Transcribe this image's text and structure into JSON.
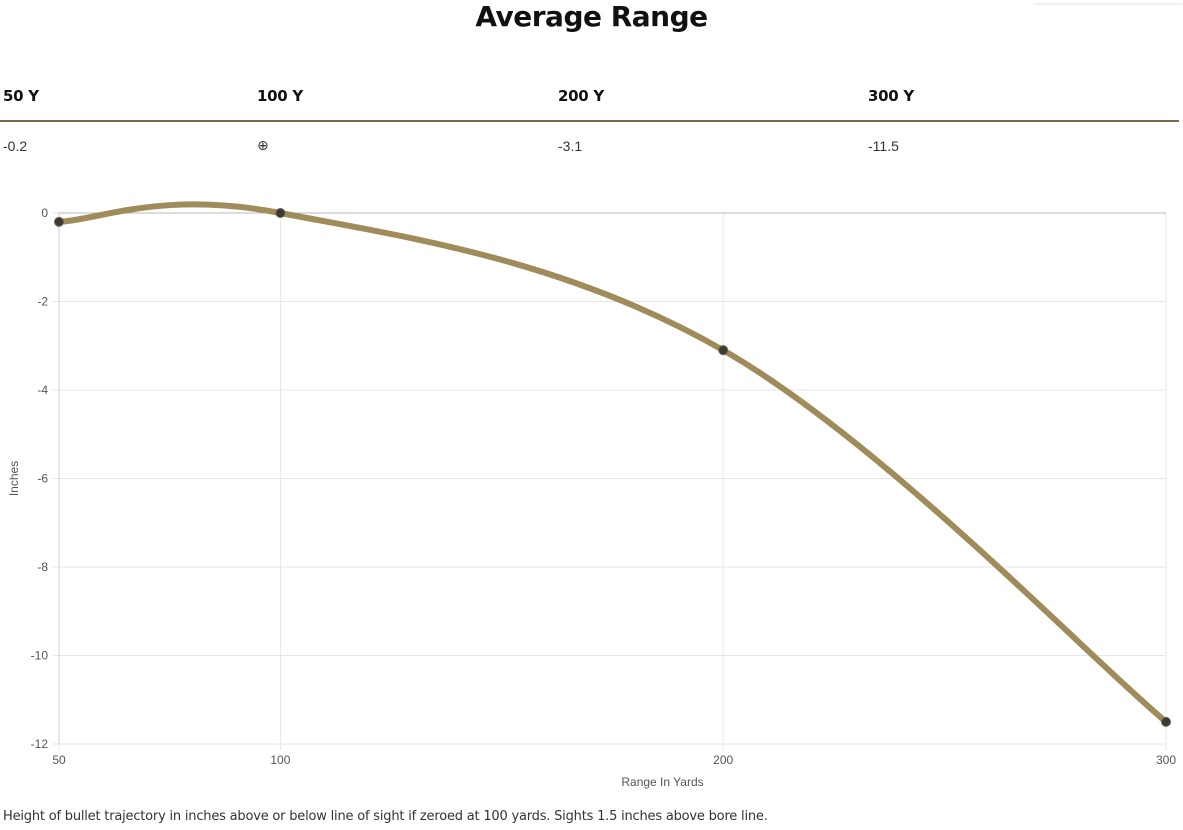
{
  "header": {
    "title": "Average Range"
  },
  "table": {
    "headers": [
      "50 Y",
      "100 Y",
      "200 Y",
      "300 Y"
    ],
    "values": [
      "-0.2",
      "⊕",
      "-3.1",
      "-11.5"
    ]
  },
  "footnote": "Height of bullet trajectory in inches above or below line of sight if zeroed at 100 yards. Sights 1.5 inches above bore line.",
  "colors": {
    "line": "#a08c5a",
    "point": "#3d3a33",
    "rule": "#7a6a46",
    "grid": "#e6e6e6"
  },
  "chart_data": {
    "type": "line",
    "title": "Average Range",
    "xlabel": "Range In Yards",
    "ylabel": "Inches",
    "x": [
      50,
      100,
      200,
      300
    ],
    "values": [
      -0.2,
      0,
      -3.1,
      -11.5
    ],
    "xticks": [
      "50",
      "100",
      "200",
      "300"
    ],
    "yticks": [
      "0",
      "-2",
      "-4",
      "-6",
      "-8",
      "-10",
      "-12"
    ],
    "ylim": [
      -12,
      0
    ],
    "grid": true,
    "legend": "none"
  }
}
